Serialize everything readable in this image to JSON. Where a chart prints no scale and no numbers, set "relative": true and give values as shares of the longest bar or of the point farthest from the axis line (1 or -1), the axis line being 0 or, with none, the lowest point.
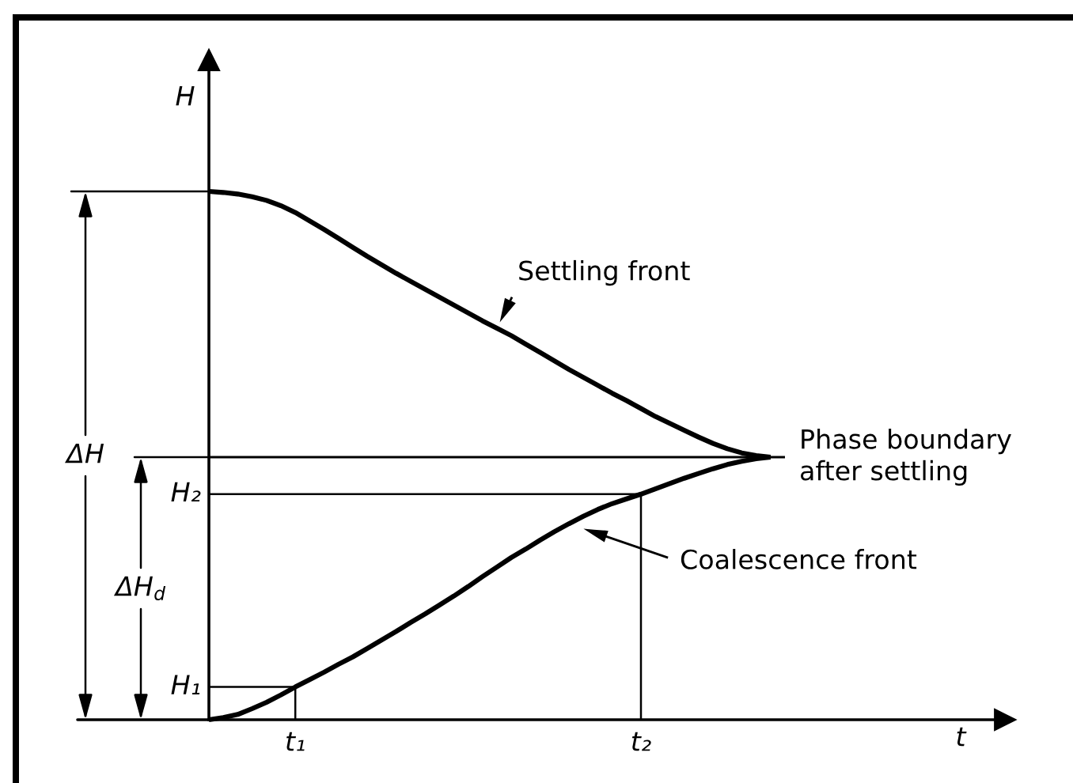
{
  "chart_data": {
    "type": "line",
    "relative": true,
    "ylabel": "H",
    "categories": [
      null,
      null,
      null,
      null,
      null,
      null,
      "t₁",
      null,
      null,
      null,
      null,
      null,
      null,
      null,
      null,
      null,
      null,
      null,
      null,
      null,
      null,
      null,
      null,
      null,
      null,
      null,
      null,
      null,
      null,
      null,
      "t₂",
      null,
      null,
      null,
      null,
      null,
      null,
      null,
      null,
      null,
      null
    ],
    "series": [
      {
        "name": "Settling front",
        "color": "#000000",
        "values": [
          1.0,
          0.998,
          0.995,
          0.99,
          0.983,
          0.973,
          0.96,
          0.944,
          0.928,
          0.911,
          0.894,
          0.877,
          0.861,
          0.845,
          0.83,
          0.815,
          0.8,
          0.785,
          0.77,
          0.755,
          0.741,
          0.727,
          0.711,
          0.695,
          0.679,
          0.663,
          0.648,
          0.633,
          0.618,
          0.604,
          0.589,
          0.574,
          0.561,
          0.548,
          0.535,
          0.523,
          0.513,
          0.505,
          0.5,
          0.497,
          null
        ]
      },
      {
        "name": "Coalescence front",
        "color": "#000000",
        "values": [
          0,
          0.004,
          0.01,
          0.021,
          0.033,
          0.047,
          0.062,
          0.076,
          0.09,
          0.105,
          0.119,
          0.135,
          0.151,
          0.167,
          0.184,
          0.2,
          0.217,
          0.234,
          0.252,
          0.271,
          0.289,
          0.307,
          0.323,
          0.34,
          0.356,
          0.371,
          0.385,
          0.398,
          0.409,
          0.418,
          0.427,
          0.437,
          0.447,
          0.457,
          0.466,
          0.475,
          0.483,
          0.489,
          0.494,
          0.497,
          null
        ]
      },
      {
        "name": "Phase boundary\nafter settling",
        "color": "#000000",
        "values": [
          0.497,
          0.497,
          0.497,
          0.497,
          0.497,
          0.497,
          0.497,
          0.497,
          0.497,
          0.497,
          0.497,
          0.497,
          0.497,
          0.497,
          0.497,
          0.497,
          0.497,
          0.497,
          0.497,
          0.497,
          0.497,
          0.497,
          0.497,
          0.497,
          0.497,
          0.497,
          0.497,
          0.497,
          0.497,
          0.497,
          0.497,
          0.497,
          0.497,
          0.497,
          0.497,
          0.497,
          0.497,
          0.497,
          0.497,
          0.497,
          0.497
        ]
      },
      {
        "color": "#000000",
        "values": [
          0.062,
          0.062,
          0.062,
          0.062,
          0.062,
          0.062,
          0.062,
          null,
          null,
          null,
          null,
          null,
          null,
          null,
          null,
          null,
          null,
          null,
          null,
          null,
          null,
          null,
          null,
          null,
          null,
          null,
          null,
          null,
          null,
          null,
          null,
          null,
          null,
          null,
          null,
          null,
          null,
          null,
          null,
          null,
          null
        ]
      },
      {
        "color": "#000000",
        "x": [
          "t₁",
          "t₁"
        ],
        "values": [
          0.062,
          0
        ]
      },
      {
        "color": "#000000",
        "values": [
          0.427,
          0.427,
          0.427,
          0.427,
          0.427,
          0.427,
          0.427,
          0.427,
          0.427,
          0.427,
          0.427,
          0.427,
          0.427,
          0.427,
          0.427,
          0.427,
          0.427,
          0.427,
          0.427,
          0.427,
          0.427,
          0.427,
          0.427,
          0.427,
          0.427,
          0.427,
          0.427,
          0.427,
          0.427,
          0.427,
          0.427,
          null,
          null,
          null,
          null,
          null,
          null,
          null,
          null,
          null,
          null
        ]
      },
      {
        "color": "#000000",
        "x": [
          "t₂",
          "t₂"
        ],
        "values": [
          0.427,
          0
        ]
      }
    ],
    "annotations": [
      "H₁",
      "H₂",
      "ΔH",
      "ΔH$_{d}$",
      "t"
    ]
  }
}
